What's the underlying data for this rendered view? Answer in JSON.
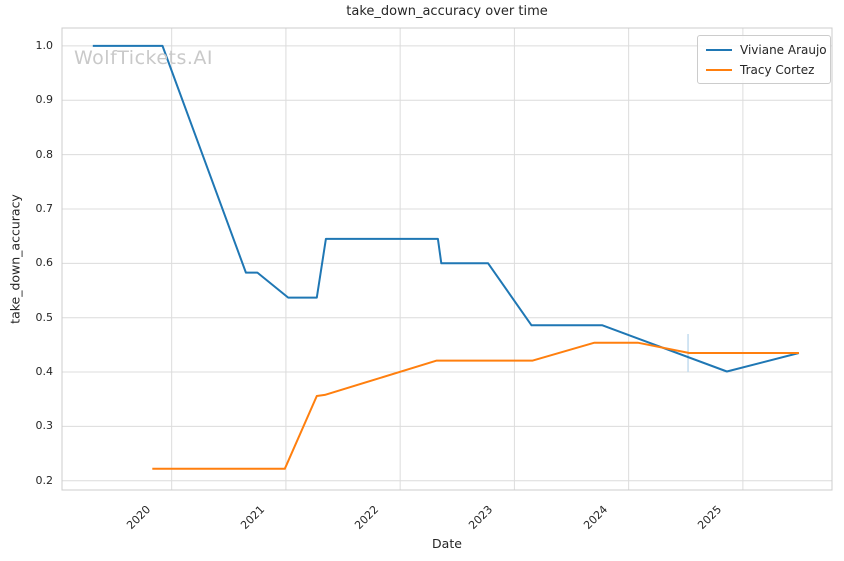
{
  "figure": {
    "title": "take_down_accuracy over time",
    "watermark": "WolfTickets.AI"
  },
  "chart_data": {
    "type": "line",
    "title": "take_down_accuracy over time",
    "xlabel": "Date",
    "ylabel": "take_down_accuracy",
    "x_ticks": [
      2020,
      2021,
      2022,
      2023,
      2024,
      2025
    ],
    "y_ticks": [
      0.2,
      0.3,
      0.4,
      0.5,
      0.6,
      0.7,
      0.8,
      0.9,
      1.0
    ],
    "xlim": [
      2019.04,
      2025.78
    ],
    "ylim": [
      0.183,
      1.033
    ],
    "grid": true,
    "legend_position": "upper right",
    "series": [
      {
        "name": "Viviane Araujo",
        "color": "#1f77b4",
        "points": [
          [
            2019.31,
            1.0
          ],
          [
            2019.92,
            1.0
          ],
          [
            2020.65,
            0.583
          ],
          [
            2020.75,
            0.583
          ],
          [
            2021.02,
            0.537
          ],
          [
            2021.27,
            0.537
          ],
          [
            2021.35,
            0.645
          ],
          [
            2022.33,
            0.645
          ],
          [
            2022.36,
            0.6
          ],
          [
            2022.77,
            0.6
          ],
          [
            2023.15,
            0.486
          ],
          [
            2023.77,
            0.486
          ],
          [
            2024.86,
            0.401
          ],
          [
            2025.49,
            0.435
          ]
        ]
      },
      {
        "name": "Tracy Cortez",
        "color": "#ff7f0e",
        "points": [
          [
            2019.83,
            0.222
          ],
          [
            2020.99,
            0.222
          ],
          [
            2021.27,
            0.356
          ],
          [
            2021.34,
            0.358
          ],
          [
            2022.32,
            0.421
          ],
          [
            2023.16,
            0.421
          ],
          [
            2023.7,
            0.454
          ],
          [
            2024.08,
            0.454
          ],
          [
            2024.53,
            0.435
          ],
          [
            2025.49,
            0.435
          ]
        ]
      }
    ],
    "annotation_line": {
      "x": 2024.52,
      "y_from": 0.4,
      "y_to": 0.47,
      "color": "#c3dcef"
    }
  }
}
